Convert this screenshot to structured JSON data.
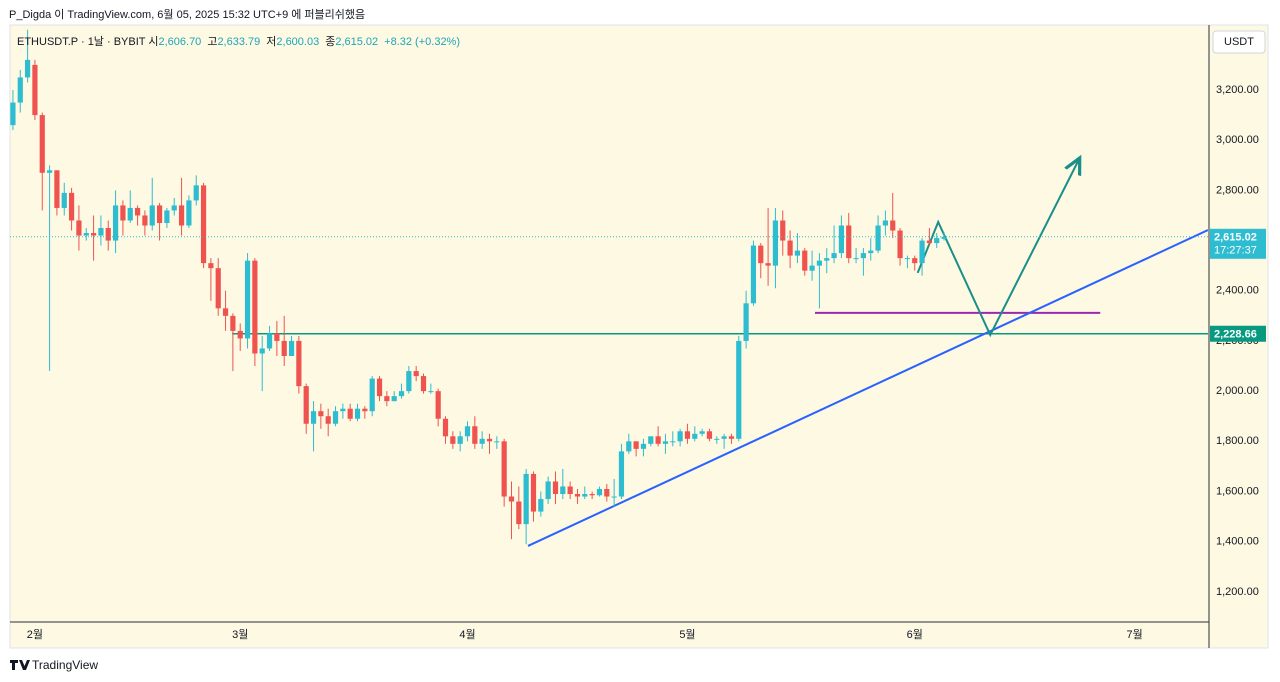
{
  "attribution": "P_Digda 이 TradingView.com, 6월 05, 2025 15:32 UTC+9 에 퍼블리쉬했음",
  "brand": "TradingView",
  "chart_data": {
    "type": "candlestick",
    "symbol": "ETHUSDT.P · 1날 · BYBIT",
    "ohlc_legend": [
      {
        "label": "시",
        "text": "2,606.70"
      },
      {
        "label": "고",
        "text": "2,633.79"
      },
      {
        "label": "저",
        "text": "2,600.03"
      },
      {
        "label": "종",
        "text": "2,615.02"
      }
    ],
    "change_label": "+8.32 (+0.32%)",
    "currency": "USDT",
    "up_color": "#2ebcd0",
    "down_color": "#ef5350",
    "open": [
      3060,
      3150,
      3250,
      3300,
      3100,
      2870,
      2880,
      2730,
      2790,
      2680,
      2620,
      2630,
      2620,
      2650,
      2600,
      2740,
      2680,
      2730,
      2700,
      2660,
      2740,
      2670,
      2720,
      2740,
      2660,
      2760,
      2820,
      2510,
      2490,
      2330,
      2300,
      2240,
      2210,
      2520,
      2150,
      2170,
      2230,
      2200,
      2140,
      2200,
      2020,
      1870,
      1920,
      1900,
      1870,
      1920,
      1930,
      1890,
      1930,
      1920,
      2050,
      1980,
      1960,
      1980,
      2000,
      2080,
      2060,
      2000,
      2000,
      1890,
      1820,
      1790,
      1820,
      1860,
      1790,
      1810,
      1800,
      1800,
      1580,
      1560,
      1470,
      1670,
      1520,
      1570,
      1640,
      1590,
      1620,
      1590,
      1580,
      1590,
      1585,
      1610,
      1580,
      1580,
      1760,
      1800,
      1770,
      1790,
      1820,
      1790,
      1800,
      1800,
      1840,
      1810,
      1830,
      1840,
      1810,
      1810,
      1820,
      1810,
      2200,
      2350,
      2580,
      2510,
      2500,
      2680,
      2600,
      2540,
      2560,
      2480,
      2500,
      2520,
      2530,
      2550,
      2660,
      2530,
      2530,
      2550,
      2560,
      2660,
      2680,
      2640,
      2530,
      2530,
      2510,
      2600,
      2590,
      2606.7
    ],
    "high": [
      3200,
      3280,
      3440,
      3320,
      3110,
      2900,
      2880,
      2830,
      2810,
      2740,
      2650,
      2700,
      2700,
      2680,
      2800,
      2760,
      2800,
      2740,
      2720,
      2850,
      2750,
      2730,
      2770,
      2850,
      2780,
      2860,
      2830,
      2530,
      2530,
      2400,
      2310,
      2270,
      2550,
      2530,
      2220,
      2260,
      2280,
      2300,
      2220,
      2220,
      2030,
      1960,
      1950,
      1930,
      1940,
      1950,
      1950,
      1950,
      1940,
      2060,
      2060,
      2000,
      2000,
      2030,
      2100,
      2100,
      2070,
      2030,
      2010,
      1900,
      1840,
      1840,
      1880,
      1900,
      1840,
      1830,
      1820,
      1810,
      1640,
      1620,
      1690,
      1680,
      1600,
      1660,
      1680,
      1690,
      1640,
      1610,
      1620,
      1600,
      1620,
      1630,
      1650,
      1790,
      1830,
      1800,
      1810,
      1820,
      1860,
      1830,
      1840,
      1850,
      1870,
      1860,
      1850,
      1850,
      1820,
      1830,
      1830,
      2220,
      2400,
      2600,
      2590,
      2730,
      2730,
      2720,
      2640,
      2630,
      2570,
      2560,
      2550,
      2570,
      2660,
      2700,
      2710,
      2570,
      2570,
      2610,
      2700,
      2720,
      2790,
      2650,
      2540,
      2540,
      2610,
      2650,
      2630,
      2633.79
    ],
    "low": [
      3040,
      3110,
      3230,
      3080,
      2720,
      2080,
      2700,
      2700,
      2640,
      2560,
      2600,
      2520,
      2580,
      2560,
      2550,
      2620,
      2670,
      2660,
      2620,
      2640,
      2600,
      2650,
      2700,
      2620,
      2650,
      2740,
      2490,
      2360,
      2300,
      2240,
      2080,
      2160,
      2170,
      2100,
      2000,
      2160,
      2140,
      2100,
      2140,
      1990,
      1830,
      1760,
      1850,
      1820,
      1860,
      1890,
      1880,
      1880,
      1890,
      1900,
      1960,
      1940,
      1960,
      1970,
      1990,
      2040,
      1990,
      1990,
      1860,
      1790,
      1770,
      1760,
      1800,
      1770,
      1770,
      1750,
      1770,
      1540,
      1410,
      1450,
      1390,
      1480,
      1500,
      1550,
      1550,
      1570,
      1570,
      1550,
      1570,
      1570,
      1580,
      1560,
      1540,
      1570,
      1750,
      1740,
      1740,
      1780,
      1780,
      1750,
      1780,
      1780,
      1790,
      1800,
      1820,
      1800,
      1790,
      1770,
      1790,
      1800,
      2170,
      2340,
      2450,
      2420,
      2410,
      2540,
      2490,
      2510,
      2460,
      2440,
      2330,
      2470,
      2510,
      2530,
      2510,
      2510,
      2460,
      2520,
      2550,
      2620,
      2610,
      2500,
      2490,
      2480,
      2460,
      2580,
      2570,
      2600.03
    ],
    "close": [
      3150,
      3250,
      3320,
      3100,
      2870,
      2880,
      2730,
      2790,
      2680,
      2620,
      2630,
      2620,
      2650,
      2600,
      2740,
      2680,
      2730,
      2700,
      2660,
      2740,
      2670,
      2720,
      2740,
      2660,
      2760,
      2820,
      2510,
      2490,
      2330,
      2300,
      2240,
      2210,
      2520,
      2150,
      2170,
      2230,
      2200,
      2140,
      2200,
      2020,
      1870,
      1920,
      1900,
      1870,
      1920,
      1930,
      1890,
      1930,
      1920,
      2050,
      1980,
      1960,
      1980,
      2000,
      2080,
      2060,
      2000,
      2000,
      1890,
      1820,
      1790,
      1820,
      1860,
      1790,
      1810,
      1800,
      1800,
      1580,
      1560,
      1470,
      1670,
      1520,
      1570,
      1640,
      1590,
      1620,
      1590,
      1580,
      1590,
      1585,
      1610,
      1580,
      1580,
      1760,
      1800,
      1770,
      1790,
      1820,
      1790,
      1800,
      1800,
      1840,
      1810,
      1830,
      1840,
      1810,
      1810,
      1820,
      1810,
      2200,
      2350,
      2580,
      2510,
      2500,
      2680,
      2600,
      2540,
      2560,
      2480,
      2500,
      2520,
      2530,
      2550,
      2660,
      2530,
      2530,
      2550,
      2560,
      2660,
      2680,
      2640,
      2530,
      2530,
      2510,
      2600,
      2590,
      2610,
      2615.02
    ],
    "last_price_label": "2,615.02",
    "countdown": "17:27:37",
    "xlim": [
      -0.4,
      163
    ],
    "xticks": [
      {
        "value": 3,
        "label": "2월"
      },
      {
        "value": 31,
        "label": "3월"
      },
      {
        "value": 62,
        "label": "4월"
      },
      {
        "value": 92,
        "label": "5월"
      },
      {
        "value": 123,
        "label": "6월"
      },
      {
        "value": 153,
        "label": "7월"
      }
    ],
    "ylim": [
      1080,
      3459
    ],
    "yticks": [
      {
        "value": 1200,
        "label": "1,200.00"
      },
      {
        "value": 1400,
        "label": "1,400.00"
      },
      {
        "value": 1600,
        "label": "1,600.00"
      },
      {
        "value": 1800,
        "label": "1,800.00"
      },
      {
        "value": 2000,
        "label": "2,000.00"
      },
      {
        "value": 2200,
        "label": "2,200.00"
      },
      {
        "value": 2400,
        "label": "2,400.00"
      },
      {
        "value": 2600,
        "label": "2,600.00"
      },
      {
        "value": 2800,
        "label": "2,800.00"
      },
      {
        "value": 3000,
        "label": "3,000.00"
      },
      {
        "value": 3200,
        "label": "3,200.00"
      }
    ],
    "grid": false,
    "drawings": [
      {
        "kind": "horizontal_line",
        "color": "#089981",
        "value": 2228.66,
        "value_label": "2,228.66",
        "x_start": 29.9
      },
      {
        "kind": "segment",
        "color": "#9c27b0",
        "x": [
          109.4,
          148.3
        ],
        "y": [
          2312,
          2312
        ]
      },
      {
        "kind": "segment",
        "color": "#2962ff",
        "x": [
          70.25,
          163
        ],
        "y": [
          1383,
          2642
        ]
      },
      {
        "kind": "arrow_path",
        "color": "#1a8f8a",
        "x": [
          123.4,
          126.2,
          133.3,
          145.5
        ],
        "y": [
          2471,
          2674,
          2224,
          2929
        ]
      }
    ]
  }
}
